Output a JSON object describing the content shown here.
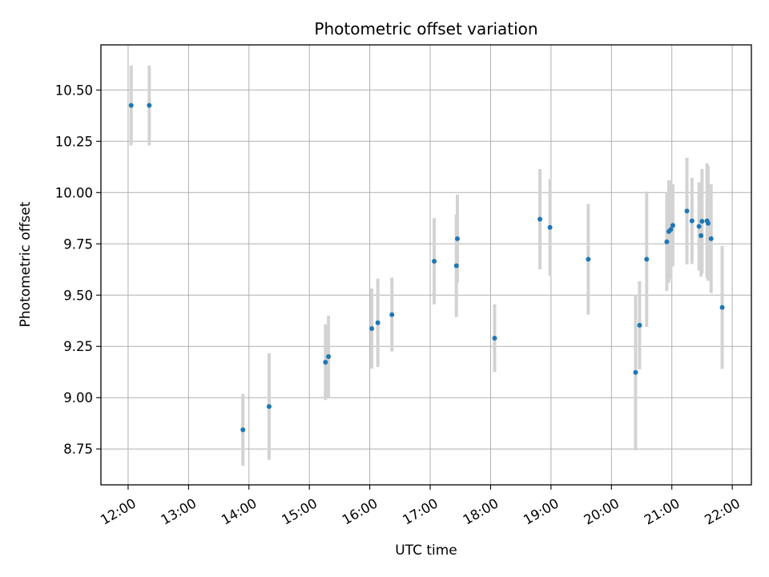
{
  "chart_data": {
    "type": "scatter",
    "title": "Photometric offset variation",
    "xlabel": "UTC time",
    "ylabel": "Photometric offset",
    "grid": true,
    "x_ticks": [
      "12:00",
      "13:00",
      "14:00",
      "15:00",
      "16:00",
      "17:00",
      "18:00",
      "19:00",
      "20:00",
      "21:00",
      "22:00"
    ],
    "y_ticks": [
      "8.75",
      "9.00",
      "9.25",
      "9.50",
      "9.75",
      "10.00",
      "10.25",
      "10.50"
    ],
    "x_range": [
      "11:33",
      "22:19"
    ],
    "y_range": [
      8.575,
      10.72
    ],
    "point_color": "#1f77b4",
    "errorbar_color": "#d3d3d3",
    "series": [
      {
        "points": [
          {
            "x": "12:03",
            "y": 10.425,
            "err": 0.195
          },
          {
            "x": "12:21",
            "y": 10.425,
            "err": 0.195
          },
          {
            "x": "13:54",
            "y": 8.843,
            "err": 0.175
          },
          {
            "x": "14:20",
            "y": 8.957,
            "err": 0.26
          },
          {
            "x": "15:16",
            "y": 9.173,
            "err": 0.185
          },
          {
            "x": "15:19",
            "y": 9.2,
            "err": 0.2
          },
          {
            "x": "16:02",
            "y": 9.337,
            "err": 0.195
          },
          {
            "x": "16:08",
            "y": 9.365,
            "err": 0.215
          },
          {
            "x": "16:22",
            "y": 9.405,
            "err": 0.18
          },
          {
            "x": "17:04",
            "y": 9.665,
            "err": 0.21
          },
          {
            "x": "17:26",
            "y": 9.643,
            "err": 0.25
          },
          {
            "x": "17:27",
            "y": 9.775,
            "err": 0.215
          },
          {
            "x": "18:04",
            "y": 9.29,
            "err": 0.165
          },
          {
            "x": "18:49",
            "y": 9.87,
            "err": 0.245
          },
          {
            "x": "18:59",
            "y": 9.83,
            "err": 0.235
          },
          {
            "x": "19:37",
            "y": 9.675,
            "err": 0.27
          },
          {
            "x": "20:24",
            "y": 9.123,
            "err": 0.38
          },
          {
            "x": "20:28",
            "y": 9.353,
            "err": 0.215
          },
          {
            "x": "20:35",
            "y": 9.675,
            "err": 0.33
          },
          {
            "x": "20:55",
            "y": 9.76,
            "err": 0.24
          },
          {
            "x": "20:57",
            "y": 9.81,
            "err": 0.25
          },
          {
            "x": "20:59",
            "y": 9.82,
            "err": 0.24
          },
          {
            "x": "21:01",
            "y": 9.84,
            "err": 0.2
          },
          {
            "x": "21:15",
            "y": 9.91,
            "err": 0.26
          },
          {
            "x": "21:20",
            "y": 9.862,
            "err": 0.21
          },
          {
            "x": "21:27",
            "y": 9.835,
            "err": 0.215
          },
          {
            "x": "21:29",
            "y": 9.79,
            "err": 0.2
          },
          {
            "x": "21:30",
            "y": 9.86,
            "err": 0.255
          },
          {
            "x": "21:35",
            "y": 9.862,
            "err": 0.28
          },
          {
            "x": "21:36",
            "y": 9.85,
            "err": 0.28
          },
          {
            "x": "21:39",
            "y": 9.775,
            "err": 0.265
          },
          {
            "x": "21:50",
            "y": 9.44,
            "err": 0.3
          }
        ]
      }
    ]
  }
}
